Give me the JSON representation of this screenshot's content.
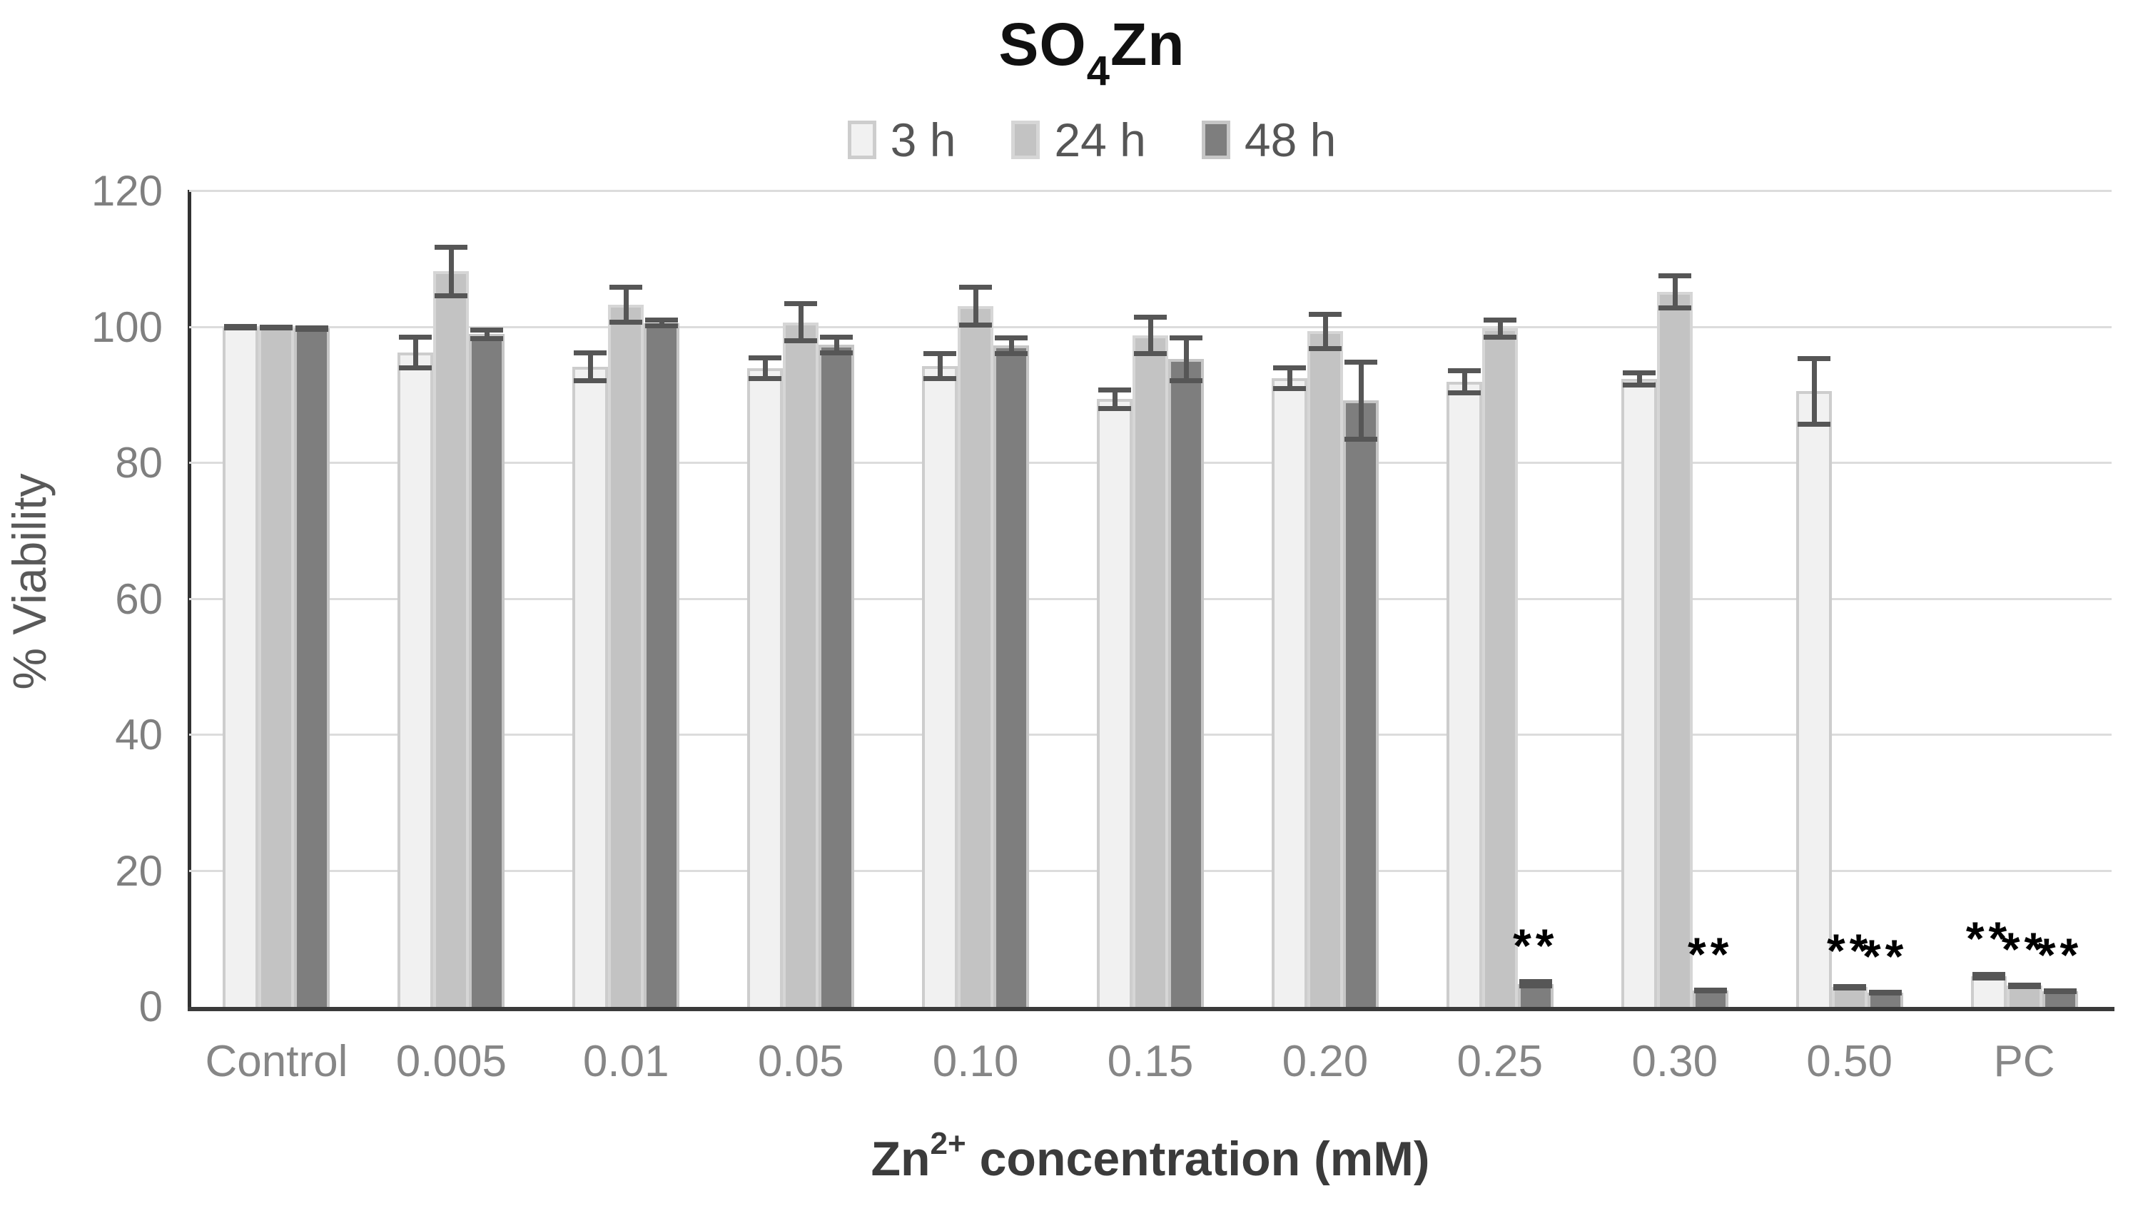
{
  "title": {
    "prefix": "SO",
    "sub": "4",
    "suffix": "Zn"
  },
  "y_axis": {
    "title": "% Viability",
    "ticks": [
      0,
      20,
      40,
      60,
      80,
      100,
      120
    ]
  },
  "x_axis": {
    "title_main": "Zn",
    "title_sup": "2+",
    "title_rest": " concentration (mM)"
  },
  "legend": {
    "items": [
      "3 h",
      "24 h",
      "48 h"
    ]
  },
  "significance_marker": "**",
  "colors": {
    "series_3h_fill": "#f1f1f1",
    "series_3h_border": "#cdcdcd",
    "series_24h_fill": "#c3c3c3",
    "series_24h_border": "#d6d6d6",
    "series_48h_fill": "#7e7e7e",
    "series_48h_border": "#c6c6c6",
    "error_bar": "#565656",
    "gridline": "#dcdcdc",
    "axis_line": "#323232"
  },
  "chart_data": {
    "type": "bar",
    "title": "SO4Zn",
    "xlabel": "Zn2+ concentration (mM)",
    "ylabel": "% Viability",
    "ylim": [
      0,
      120
    ],
    "grid": true,
    "legend_position": "top",
    "categories": [
      "Control",
      "0.005",
      "0.01",
      "0.05",
      "0.10",
      "0.15",
      "0.20",
      "0.25",
      "0.30",
      "0.50",
      "PC"
    ],
    "series": [
      {
        "name": "3 h",
        "color": "#f1f1f1",
        "border": "#cdcdcd",
        "values": [
          100,
          96.3,
          94.2,
          94.0,
          94.3,
          89.4,
          92.5,
          92.0,
          92.4,
          90.6,
          4.5
        ],
        "errors": [
          0.5,
          2.6,
          2.4,
          1.9,
          2.2,
          1.7,
          1.9,
          2.0,
          1.3,
          5.2,
          0.6
        ],
        "significant": [
          false,
          false,
          false,
          false,
          false,
          false,
          false,
          false,
          false,
          false,
          true
        ]
      },
      {
        "name": "24 h",
        "color": "#c3c3c3",
        "border": "#d6d6d6",
        "values": [
          100,
          108.2,
          103.3,
          100.7,
          103.1,
          98.8,
          99.4,
          99.8,
          105.2,
          2.9,
          3.1
        ],
        "errors": [
          0.4,
          3.9,
          2.9,
          3.1,
          3.1,
          3.0,
          2.9,
          1.6,
          2.7,
          0.5,
          0.5
        ],
        "significant": [
          false,
          false,
          false,
          false,
          false,
          false,
          false,
          false,
          false,
          true,
          true
        ]
      },
      {
        "name": "48 h",
        "color": "#7e7e7e",
        "border": "#c6c6c6",
        "values": [
          99.8,
          99.0,
          100.6,
          97.4,
          97.3,
          95.3,
          89.2,
          3.4,
          2.4,
          2.1,
          2.3
        ],
        "errors": [
          0.5,
          1.0,
          0.8,
          1.5,
          1.5,
          3.5,
          6.0,
          0.7,
          0.4,
          0.3,
          0.4
        ],
        "significant": [
          false,
          false,
          false,
          false,
          false,
          false,
          false,
          true,
          true,
          true,
          true
        ]
      }
    ]
  }
}
